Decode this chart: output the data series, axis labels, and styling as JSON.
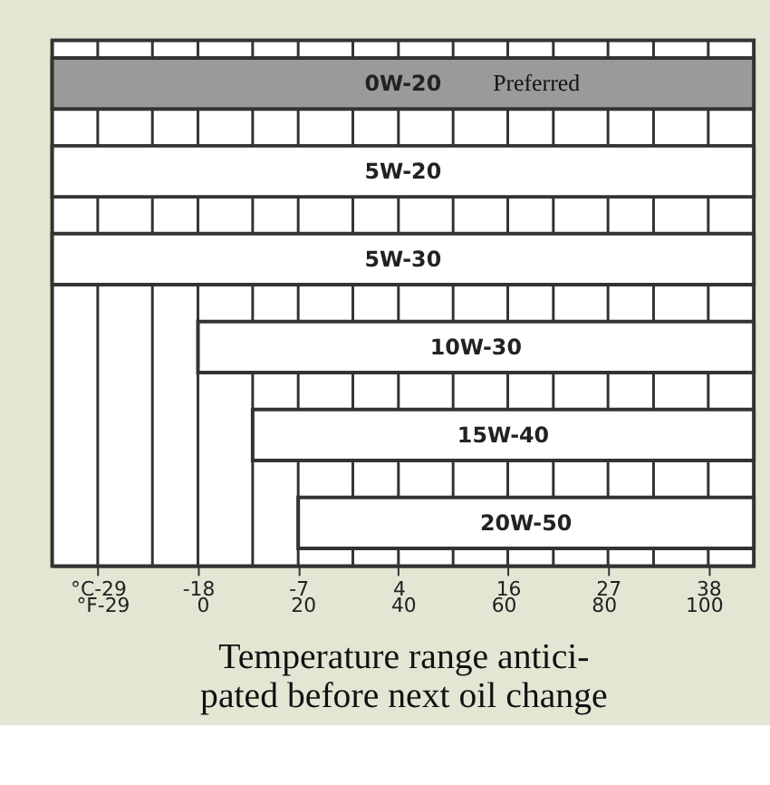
{
  "chart_data": {
    "type": "bar",
    "orientation": "horizontal",
    "categories": [
      "0W-20",
      "5W-20",
      "5W-30",
      "10W-30",
      "15W-40",
      "20W-50"
    ],
    "base": [
      -34,
      -34,
      -34,
      -18,
      -12,
      -7
    ],
    "values": [
      77,
      77,
      77,
      61,
      55,
      50
    ],
    "colors": [
      "#9a9a9a",
      "#ffffff",
      "#ffffff",
      "#ffffff",
      "#ffffff",
      "#ffffff"
    ],
    "xlim": [
      -34,
      43
    ],
    "xticks": [
      {
        "value": -29,
        "label": "°C-29"
      },
      {
        "value": -23,
        "label": null
      },
      -18,
      {
        "value": -12,
        "label": null
      },
      -7,
      {
        "value": -1,
        "label": null
      },
      4,
      {
        "value": 10,
        "label": null
      },
      16,
      {
        "value": 21,
        "label": null
      },
      27,
      {
        "value": 32,
        "label": null
      },
      38
    ],
    "x2lim": [
      -30,
      110
    ],
    "x2ticks": [
      {
        "value": -20,
        "label": "°F-29"
      },
      0,
      20,
      40,
      60,
      80,
      100
    ],
    "xlabel": "Temperature range antici-\npated before next oil change",
    "grid": "x",
    "annotations": [
      "Preferred"
    ]
  }
}
